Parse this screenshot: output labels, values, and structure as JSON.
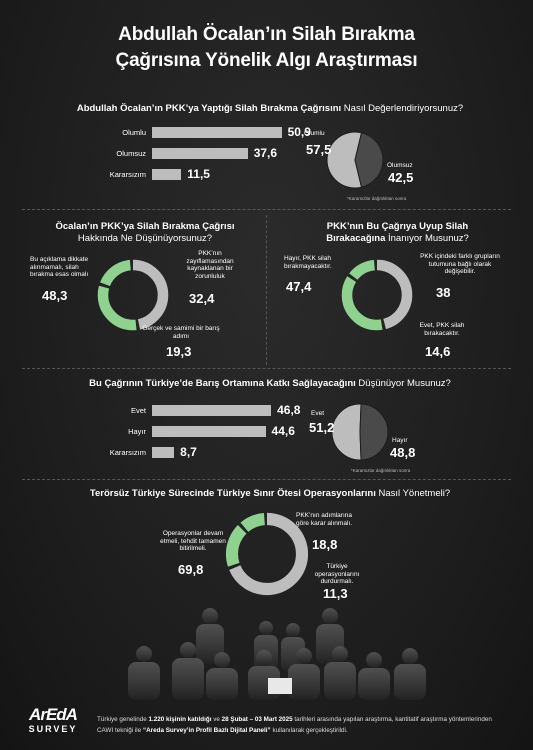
{
  "title_line1": "Abdullah Öcalan’ın Silah Bırakma",
  "title_line2": "Çağrısına Yönelik Algı Araştırması",
  "q1": {
    "title_bold": "Abdullah Öcalan’ın PKK’ya Yaptığı Silah Bırakma Çağrısını",
    "title_rest": " Nasıl Değerlendiriyorsunuz?",
    "note": "*Kararsızlar dağıtılıktan sonra"
  },
  "q2": {
    "title_bold": "Öcalan’ın PKK’ya Silah Bırakma Çağrısı",
    "title_line2": "Hakkında Ne Düşünüyorsunuz?",
    "labels": {
      "a": "Bu açıklama dikkate alınmamalı, silah bırakma esas olmalı",
      "b": "PKK’nın zayıflamasından kaynaklanan bir zorunluluk",
      "c": "Gerçek ve samimi bir barış adımı"
    }
  },
  "q3": {
    "title_bold": "PKK’nın Bu Çağrıya Uyup Silah",
    "title_line2_bold": "Bırakacağına",
    "title_line2_rest": " İnanıyor Musunuz?",
    "labels": {
      "a": "Hayır, PKK silah bırakmayacaktır.",
      "b": "PKK içindeki farklı grupların tutumuna bağlı olarak değişebilir.",
      "c": "Evet, PKK silah bırakacaktır."
    }
  },
  "q4": {
    "title_bold": "Bu Çağrının Türkiye’de Barış Ortamına Katkı Sağlayacağını",
    "title_rest": " Düşünüyor Musunuz?",
    "note": "*Kararsızlar dağıtılıktan sonra"
  },
  "q5": {
    "title_bold": "Terörsüz Türkiye Sürecinde Türkiye Sınır Ötesi Operasyonlarını",
    "title_rest": " Nasıl Yönetmeli?",
    "labels": {
      "a": "Operasyonlar devam etmeli, tehdit tamamen bitirilmeli.",
      "b": "PKK’nın adımlarına göre karar alınmalı.",
      "c": "Türkiye operasyonlarını durdurmalı."
    }
  },
  "footer": {
    "t1": "Türkiye genelinde ",
    "b1": "1.220 kişinin katıldığı",
    "t2": " ve ",
    "b2": "28 Şubat – 03 Mart 2025",
    "t3": " tarihleri arasında yapılan araştırma, kantitatif araştırma yöntemlerinden",
    "t4": "CAWI tekniği ile ",
    "b3": "“Areda Survey’in Profil Bazlı Dijital Paneli”",
    "t5": " kullanılarak gerçekleştirildi."
  },
  "logo": {
    "top": "ArEdA",
    "bottom": "SURVEY"
  },
  "chart_data": [
    {
      "type": "bar",
      "categories": [
        "Olumlu",
        "Olumsuz",
        "Kararsızım"
      ],
      "values": [
        50.9,
        37.6,
        11.5
      ]
    },
    {
      "type": "pie",
      "categories": [
        "Olumlu",
        "Olumsuz"
      ],
      "values": [
        57.5,
        42.5
      ]
    },
    {
      "type": "pie",
      "categories": [
        "Bu açıklama dikkate alınmamalı, silah bırakma esas olmalı",
        "PKK’nın zayıflamasından kaynaklanan bir zorunluluk",
        "Gerçek ve samimi bir barış adımı"
      ],
      "values": [
        48.3,
        32.4,
        19.3
      ]
    },
    {
      "type": "pie",
      "categories": [
        "Hayır, PKK silah bırakmayacaktır.",
        "PKK içindeki farklı grupların tutumuna bağlı olarak değişebilir.",
        "Evet, PKK silah bırakacaktır."
      ],
      "values": [
        47.4,
        38.0,
        14.6
      ]
    },
    {
      "type": "bar",
      "categories": [
        "Evet",
        "Hayır",
        "Kararsızım"
      ],
      "values": [
        46.8,
        44.6,
        8.7
      ]
    },
    {
      "type": "pie",
      "categories": [
        "Evet",
        "Hayır"
      ],
      "values": [
        51.2,
        48.8
      ]
    },
    {
      "type": "pie",
      "categories": [
        "Operasyonlar devam etmeli, tehdit tamamen bitirilmeli.",
        "PKK’nın adımlarına göre karar alınmalı.",
        "Türkiye operasyonlarını durdurmalı."
      ],
      "values": [
        69.8,
        18.8,
        11.3
      ]
    }
  ],
  "colors": {
    "accent": "#8fd18f",
    "bar": "#bdbdbd",
    "pie_light": "#bdbdbd",
    "pie_dark": "#4a4a4a"
  }
}
